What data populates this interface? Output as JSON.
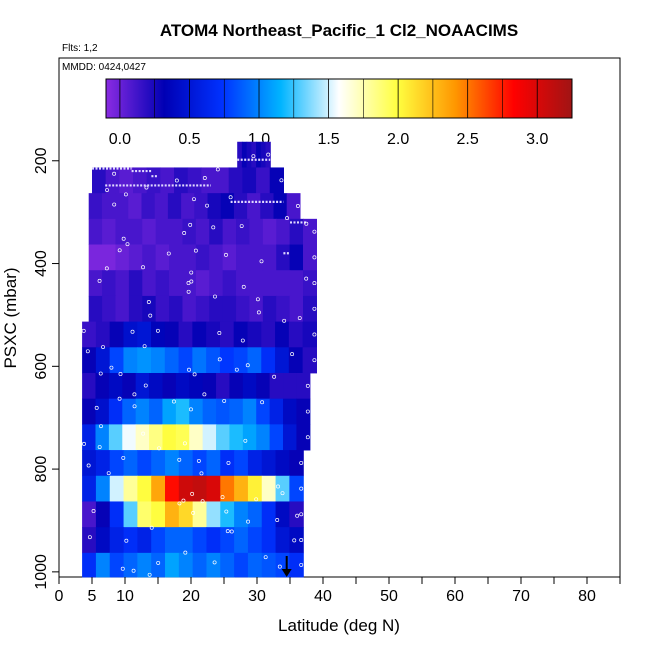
{
  "header": {
    "title": "ATOM4 Northeast_Pacific_1 Cl2_NOAACIMS",
    "flights": "Flts: 1,2",
    "dates": "MMDD: 0424,0427"
  },
  "colorbar": {
    "ticks": [
      "0.0",
      "0.5",
      "1.0",
      "1.5",
      "2.0",
      "2.5",
      "3.0"
    ],
    "range": [
      -0.1,
      3.25
    ],
    "stops": [
      "#8a2be2",
      "#0000b4",
      "#0032ff",
      "#00b4ff",
      "#ffffff",
      "#ffff40",
      "#ff9600",
      "#ff0000",
      "#a01414"
    ]
  },
  "chart_data": {
    "type": "heatmap",
    "title": "ATOM4 Northeast_Pacific_1 Cl2_NOAACIMS",
    "xlabel": "Latitude (deg N)",
    "ylabel": "PSXC (mbar)",
    "xlim": [
      0,
      85
    ],
    "ylim": [
      1010,
      0
    ],
    "x_ticks": [
      0,
      5,
      10,
      20,
      30,
      40,
      50,
      60,
      70,
      80
    ],
    "y_ticks": [
      200,
      400,
      600,
      800,
      1000
    ],
    "colorbar_label_values": [
      0.0,
      0.5,
      1.0,
      1.5,
      2.0,
      2.5,
      3.0
    ],
    "marker": {
      "label": "arrow",
      "latitude": 34.5
    },
    "rows": [
      {
        "p_top": 163,
        "p_bot": 213,
        "x0": 27,
        "x1": 32,
        "cells": [
          0.2,
          0.3,
          0.25,
          0.2,
          0.3,
          0.25,
          0.2
        ]
      },
      {
        "p_top": 213,
        "p_bot": 263,
        "x0": 5,
        "x1": 34,
        "cells": [
          0.2,
          0.1,
          0.05,
          0.1,
          0.15,
          0.1,
          0.2,
          0.15,
          0.1,
          0.1,
          0.2,
          0.25,
          0.15,
          0.3
        ]
      },
      {
        "p_top": 263,
        "p_bot": 313,
        "x0": 4.5,
        "x1": 36.5,
        "cells": [
          0.15,
          0.1,
          0.1,
          0.05,
          0.15,
          0.1,
          0.2,
          0.1,
          0.15,
          0.25,
          0.3,
          0.2,
          0.1,
          0.2,
          0.3,
          0.1
        ]
      },
      {
        "p_top": 313,
        "p_bot": 363,
        "x0": 4.5,
        "x1": 39,
        "cells": [
          0.1,
          0.05,
          0.1,
          0.1,
          0.05,
          0.1,
          0.1,
          0.15,
          0.1,
          0.2,
          0.1,
          0.15,
          0.1,
          0.05,
          0.1,
          0.2,
          0.1
        ]
      },
      {
        "p_top": 363,
        "p_bot": 413,
        "x0": 4.5,
        "x1": 39,
        "cells": [
          -0.05,
          -0.05,
          0.0,
          0.05,
          0.1,
          0.05,
          0.1,
          0.1,
          0.15,
          0.1,
          0.05,
          0.1,
          0.1,
          0.1,
          0.2,
          0.3,
          0.1
        ]
      },
      {
        "p_top": 413,
        "p_bot": 463,
        "x0": 4.5,
        "x1": 39,
        "cells": [
          0.1,
          0.15,
          0.1,
          0.2,
          0.1,
          0.15,
          0.1,
          0.1,
          0.05,
          0.1,
          0.15,
          0.1,
          0.1,
          0.1,
          0.1,
          0.1,
          0.15
        ]
      },
      {
        "p_top": 463,
        "p_bot": 513,
        "x0": 4.5,
        "x1": 39,
        "cells": [
          0.2,
          0.15,
          0.1,
          0.2,
          0.25,
          0.15,
          0.2,
          0.1,
          0.15,
          0.2,
          0.2,
          0.15,
          0.1,
          0.2,
          0.15,
          0.1,
          0.2
        ]
      },
      {
        "p_top": 513,
        "p_bot": 563,
        "x0": 3.5,
        "x1": 39,
        "cells": [
          0.15,
          0.2,
          0.3,
          0.45,
          0.5,
          0.35,
          0.3,
          0.2,
          0.3,
          0.25,
          0.2,
          0.3,
          0.25,
          0.2,
          0.3,
          0.2,
          0.25
        ]
      },
      {
        "p_top": 563,
        "p_bot": 613,
        "x0": 3.5,
        "x1": 39,
        "cells": [
          0.3,
          0.5,
          0.8,
          1.0,
          1.05,
          1.0,
          0.9,
          0.8,
          0.95,
          0.85,
          0.75,
          0.8,
          0.9,
          0.7,
          0.5,
          0.3,
          0.2
        ]
      },
      {
        "p_top": 613,
        "p_bot": 663,
        "x0": 3.5,
        "x1": 38,
        "cells": [
          0.2,
          0.3,
          0.4,
          0.3,
          0.5,
          0.4,
          0.3,
          0.4,
          0.35,
          0.3,
          0.2,
          0.3,
          0.4,
          0.3,
          0.2,
          0.2,
          0.2
        ]
      },
      {
        "p_top": 663,
        "p_bot": 713,
        "x0": 3.5,
        "x1": 38,
        "cells": [
          0.3,
          0.45,
          0.7,
          0.9,
          1.0,
          0.9,
          1.1,
          1.2,
          1.0,
          0.9,
          0.85,
          0.9,
          1.0,
          0.8,
          0.6,
          0.4,
          0.3
        ]
      },
      {
        "p_top": 713,
        "p_bot": 763,
        "x0": 3.5,
        "x1": 38,
        "cells": [
          0.6,
          1.0,
          1.3,
          1.55,
          1.7,
          1.85,
          2.0,
          1.95,
          1.7,
          1.5,
          1.3,
          1.2,
          1.1,
          1.0,
          0.8,
          0.5,
          0.3
        ]
      },
      {
        "p_top": 763,
        "p_bot": 813,
        "x0": 3.5,
        "x1": 37,
        "cells": [
          0.5,
          0.6,
          0.8,
          0.9,
          0.8,
          0.9,
          1.0,
          0.9,
          0.8,
          0.9,
          0.7,
          0.8,
          0.6,
          0.5,
          0.4,
          0.3
        ]
      },
      {
        "p_top": 813,
        "p_bot": 863,
        "x0": 3.5,
        "x1": 37,
        "cells": [
          0.6,
          1.0,
          1.5,
          1.8,
          2.0,
          2.35,
          2.8,
          3.05,
          3.1,
          3.0,
          2.5,
          2.3,
          2.05,
          1.7,
          1.3,
          0.8
        ]
      },
      {
        "p_top": 863,
        "p_bot": 913,
        "x0": 3.5,
        "x1": 37,
        "cells": [
          0.1,
          0.3,
          0.7,
          1.3,
          1.9,
          2.0,
          2.3,
          2.15,
          1.8,
          1.4,
          1.2,
          1.0,
          0.9,
          0.7,
          0.4,
          0.2
        ]
      },
      {
        "p_top": 913,
        "p_bot": 963,
        "x0": 3.5,
        "x1": 37,
        "cells": [
          0.2,
          0.4,
          0.6,
          0.7,
          0.6,
          0.8,
          0.9,
          0.9,
          0.8,
          0.7,
          0.8,
          0.9,
          0.8,
          0.7,
          0.5,
          0.4
        ]
      },
      {
        "p_top": 963,
        "p_bot": 1010,
        "x0": 3.5,
        "x1": 37,
        "cells": [
          0.7,
          1.0,
          0.8,
          0.9,
          1.0,
          0.9,
          1.1,
          1.0,
          0.9,
          1.0,
          0.9,
          0.8,
          0.9,
          0.85,
          0.8,
          0.7
        ]
      }
    ],
    "flight_tracks": [
      {
        "lat0": 5,
        "lat1": 11,
        "p": 215
      },
      {
        "lat0": 11,
        "lat1": 14,
        "p": 220
      },
      {
        "lat0": 14,
        "lat1": 15,
        "p": 230
      },
      {
        "lat0": 7,
        "lat1": 23,
        "p": 248
      },
      {
        "lat0": 27,
        "lat1": 32,
        "p": 198
      },
      {
        "lat0": 26,
        "lat1": 34,
        "p": 280
      },
      {
        "lat0": 35,
        "lat1": 37.5,
        "p": 320
      },
      {
        "lat0": 34,
        "lat1": 35,
        "p": 380
      }
    ]
  }
}
